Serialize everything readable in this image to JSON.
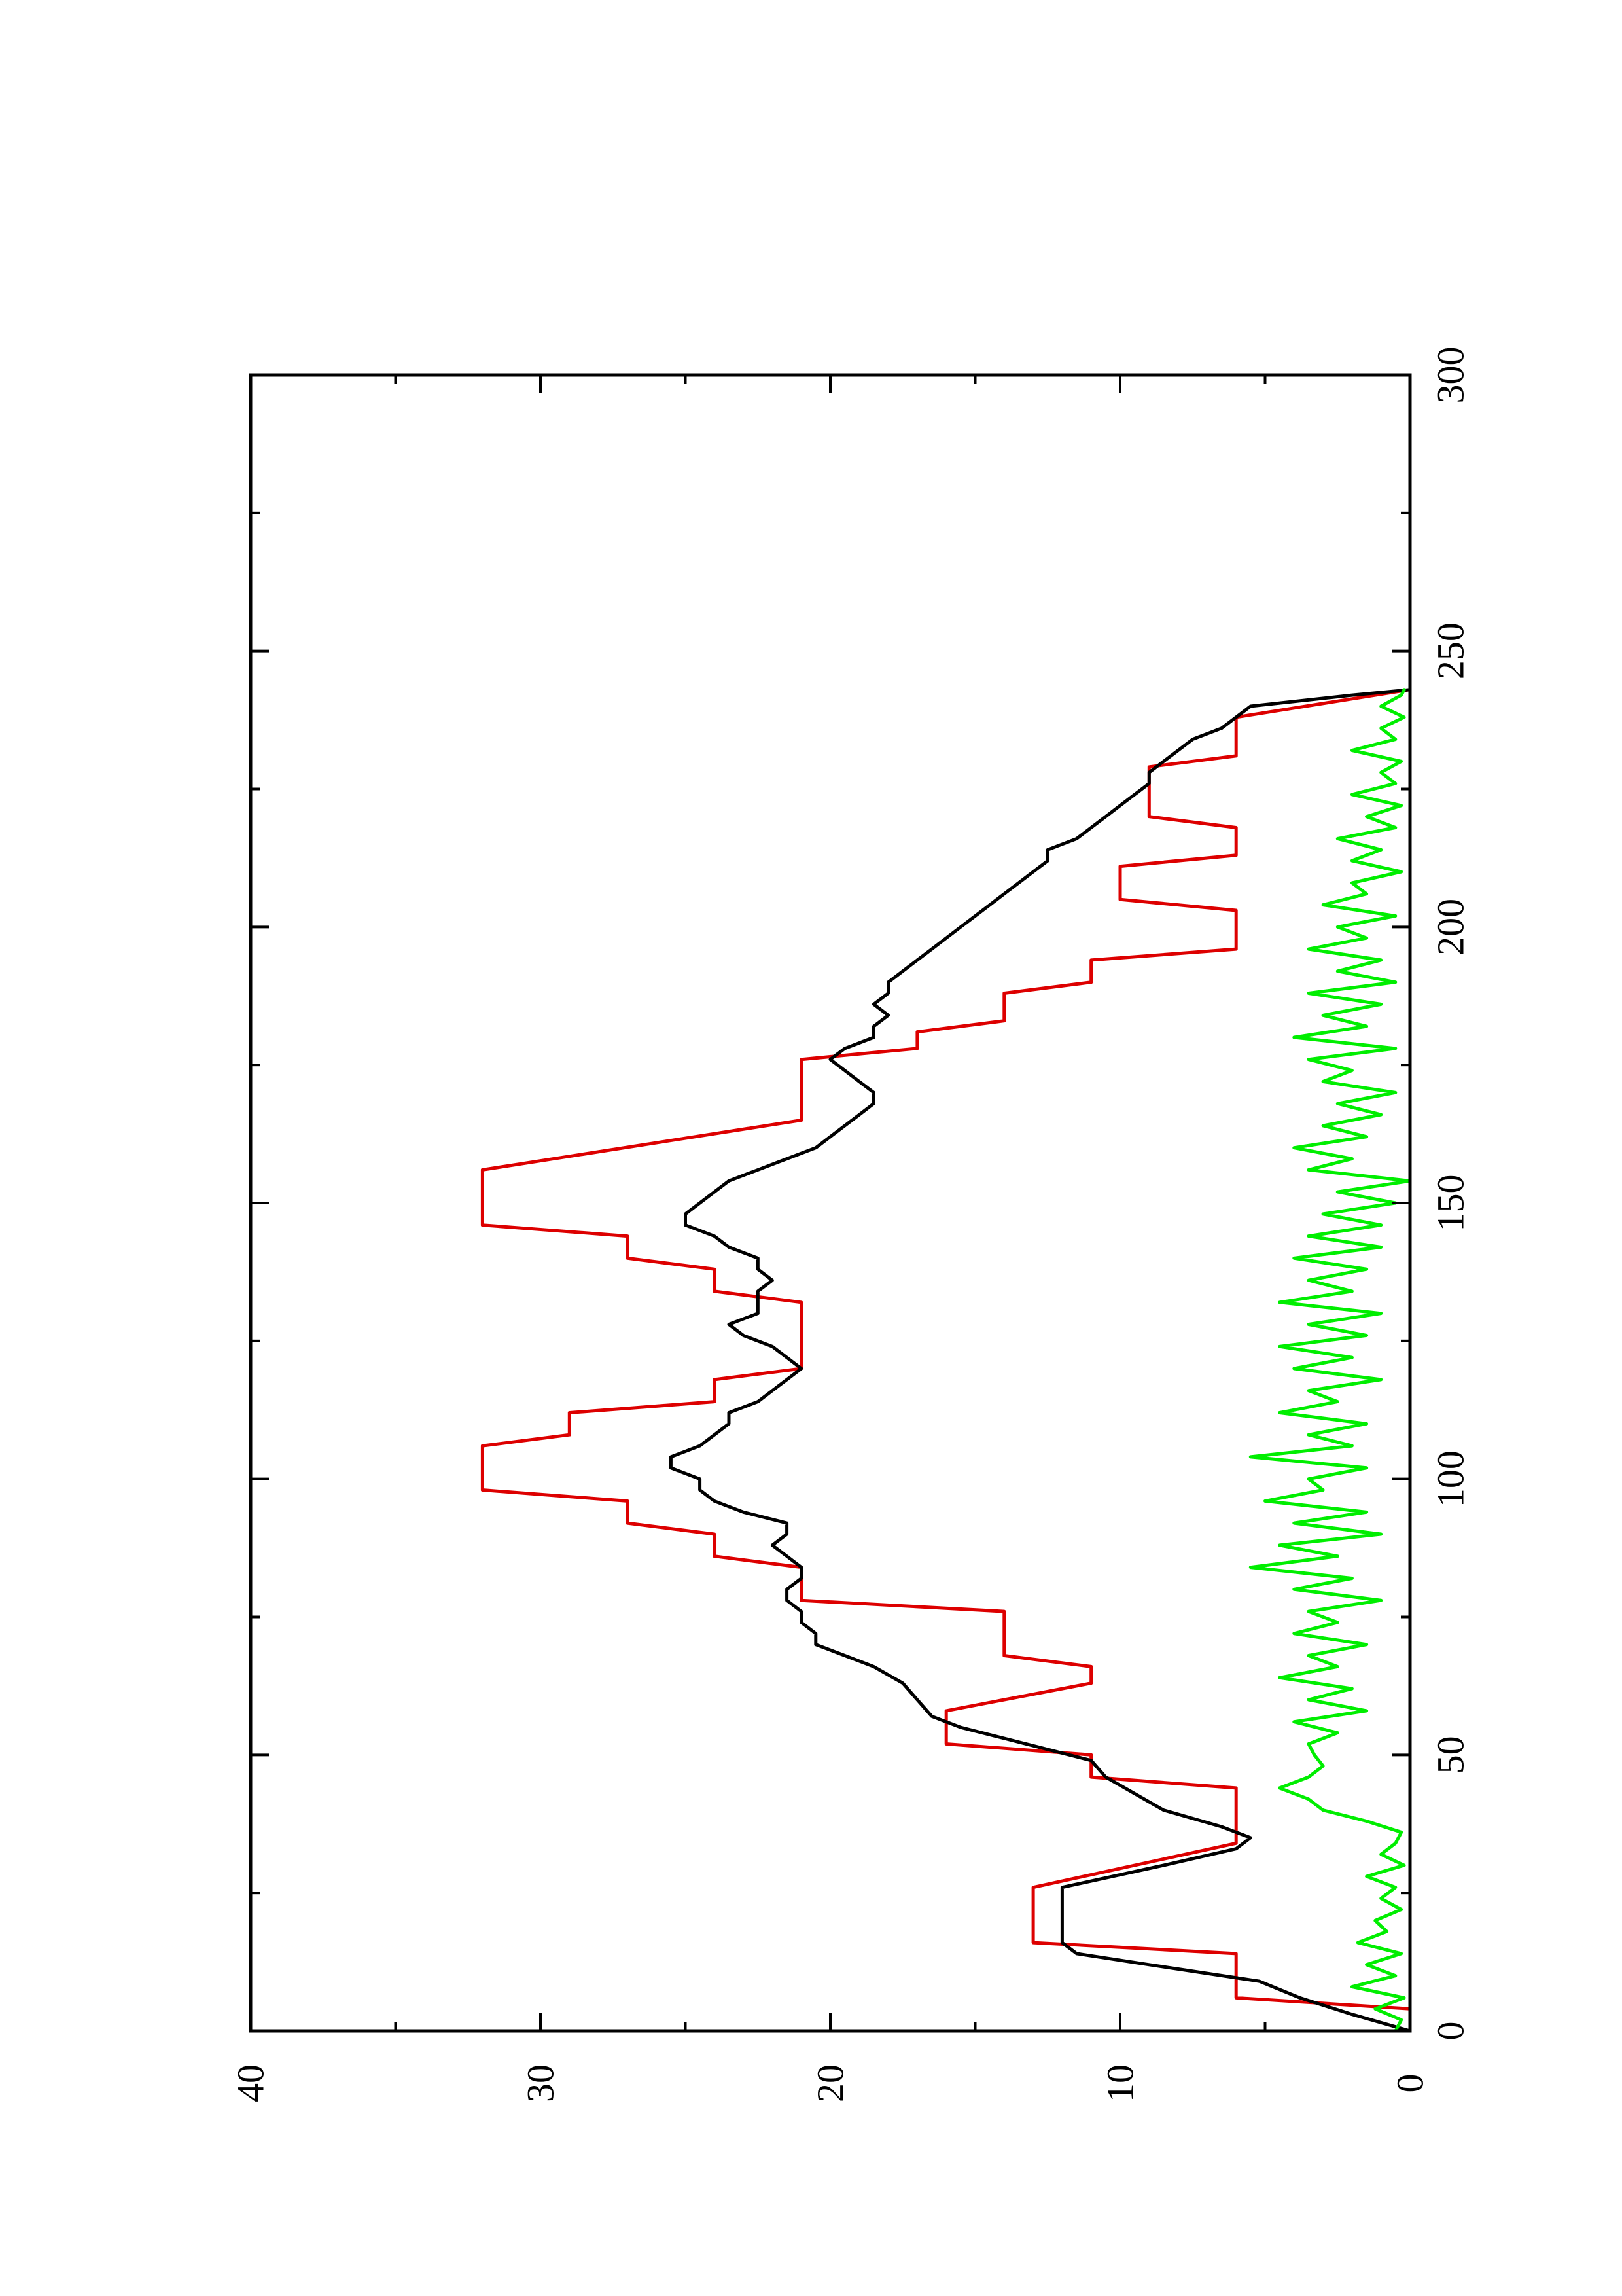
{
  "chart_data": {
    "type": "line",
    "orientation": "rotated 90 degrees counter-clockwise (x axis runs bottom-to-top along the right side, y axis runs right-to-left along the bottom)",
    "title": "",
    "xlabel": "",
    "ylabel": "",
    "xlim": [
      0,
      300
    ],
    "ylim": [
      0,
      40
    ],
    "x_ticks": [
      0,
      50,
      100,
      150,
      200,
      250,
      300
    ],
    "x_minor_ticks": [
      25,
      75,
      125,
      175,
      225,
      275
    ],
    "y_ticks": [
      0,
      10,
      20,
      30,
      40
    ],
    "y_minor_ticks": [
      5,
      15,
      25,
      35
    ],
    "x_tick_labels": [
      "0",
      "50",
      "100",
      "150",
      "200",
      "250",
      "300"
    ],
    "y_tick_labels": [
      "0",
      "10",
      "20",
      "30",
      "40"
    ],
    "grid": false,
    "legend": "none",
    "series": [
      {
        "color": "#dd0000",
        "x": [
          0,
          4,
          6,
          14,
          16,
          24,
          26,
          34,
          36,
          44,
          46,
          50,
          52,
          56,
          58,
          63,
          65,
          66,
          68,
          76,
          78,
          84,
          86,
          90,
          92,
          96,
          98,
          106,
          108,
          112,
          114,
          118,
          120,
          132,
          134,
          138,
          140,
          144,
          146,
          154,
          156,
          165,
          167,
          176,
          178,
          181,
          183,
          188,
          190,
          194,
          196,
          203,
          205,
          211,
          213,
          218,
          220,
          224,
          226,
          229,
          231,
          236,
          238,
          243
        ],
        "y": [
          0,
          0,
          6,
          6,
          13,
          13,
          13,
          6,
          6,
          6,
          11,
          11,
          16,
          16,
          16,
          11,
          11,
          11,
          14,
          14,
          21,
          21,
          24,
          24,
          27,
          27,
          32,
          32,
          29,
          29,
          24,
          24,
          21,
          21,
          24,
          24,
          27,
          27,
          32,
          32,
          32,
          21,
          21,
          21,
          17,
          17,
          14,
          14,
          11,
          11,
          6,
          6,
          10,
          10,
          6,
          6,
          9,
          9,
          9,
          9,
          6,
          6,
          6,
          0
        ]
      },
      {
        "color": "#000000",
        "x": [
          0,
          3,
          6,
          9,
          12,
          14,
          16,
          18,
          22,
          26,
          30,
          33,
          35,
          37,
          40,
          43,
          46,
          49,
          51,
          53,
          55,
          57,
          60,
          63,
          66,
          68,
          70,
          72,
          74,
          76,
          78,
          80,
          82,
          84,
          86,
          88,
          90,
          92,
          94,
          96,
          98,
          100,
          102,
          104,
          106,
          108,
          110,
          112,
          114,
          116,
          118,
          120,
          122,
          124,
          126,
          128,
          130,
          132,
          134,
          136,
          138,
          140,
          142,
          144,
          146,
          148,
          150,
          152,
          154,
          156,
          158,
          160,
          162,
          164,
          166,
          168,
          170,
          172,
          174,
          176,
          178,
          180,
          182,
          184,
          186,
          188,
          190,
          192,
          194,
          196,
          198,
          200,
          202,
          204,
          206,
          208,
          210,
          212,
          214,
          216,
          218,
          220,
          222,
          224,
          226,
          228,
          230,
          232,
          234,
          236,
          238,
          240,
          242,
          243
        ],
        "y": [
          0,
          2,
          3.8,
          5.2,
          9,
          11.5,
          12,
          12,
          12,
          12,
          8.5,
          6,
          5.5,
          6.5,
          8.5,
          9.5,
          10.5,
          11,
          12.5,
          14,
          15.5,
          16.5,
          17,
          17.5,
          18.5,
          19.5,
          20.5,
          20.5,
          21,
          21,
          21.5,
          21.5,
          21,
          21,
          21.5,
          22,
          21.5,
          21.5,
          23,
          24,
          24.5,
          24.5,
          25.5,
          25.5,
          24.5,
          24,
          23.5,
          23.5,
          22.5,
          22,
          21.5,
          21,
          21.5,
          22,
          23,
          23.5,
          22.5,
          22.5,
          22.5,
          22,
          22.5,
          22.5,
          23.5,
          24,
          25,
          25,
          24.5,
          24,
          23.5,
          22.5,
          21.5,
          20.5,
          20,
          19.5,
          19,
          18.5,
          18.5,
          19,
          19.5,
          20,
          19.5,
          18.5,
          18.5,
          18,
          18.5,
          18,
          18,
          17.5,
          17,
          16.5,
          16,
          15.5,
          15,
          14.5,
          14,
          13.5,
          13,
          12.5,
          12.5,
          11.5,
          11,
          10.5,
          10,
          9.5,
          9,
          9,
          8.5,
          8,
          7.5,
          6.5,
          6,
          5.5,
          2,
          0
        ]
      },
      {
        "color": "#00ee00",
        "x": [
          0,
          2,
          4,
          6,
          8,
          10,
          12,
          14,
          16,
          18,
          20,
          22,
          24,
          26,
          28,
          30,
          32,
          34,
          36,
          38,
          40,
          42,
          44,
          46,
          48,
          50,
          52,
          54,
          56,
          58,
          60,
          62,
          64,
          66,
          68,
          70,
          72,
          74,
          76,
          78,
          80,
          82,
          84,
          86,
          88,
          90,
          92,
          94,
          96,
          98,
          100,
          102,
          104,
          106,
          108,
          110,
          112,
          114,
          116,
          118,
          120,
          122,
          124,
          126,
          128,
          130,
          132,
          134,
          136,
          138,
          140,
          142,
          144,
          146,
          148,
          150,
          152,
          154,
          156,
          158,
          160,
          162,
          164,
          166,
          168,
          170,
          172,
          174,
          176,
          178,
          180,
          182,
          184,
          186,
          188,
          190,
          192,
          194,
          196,
          198,
          200,
          202,
          204,
          206,
          208,
          210,
          212,
          214,
          216,
          218,
          220,
          222,
          224,
          226,
          228,
          230,
          232,
          234,
          236,
          238,
          240,
          242,
          243
        ],
        "y": [
          0.5,
          0.3,
          1.2,
          0.2,
          2,
          0.5,
          1.5,
          0.3,
          1.8,
          0.8,
          1.2,
          0.3,
          1,
          0.5,
          1.5,
          0.2,
          1,
          0.5,
          0.3,
          1.5,
          3,
          3.5,
          4.5,
          3.5,
          3,
          3.3,
          3.5,
          2.5,
          4,
          1.5,
          3.5,
          2,
          4.5,
          2.5,
          3.5,
          1.5,
          4,
          2.5,
          3.5,
          1,
          4,
          2,
          5.5,
          2.5,
          4.5,
          1,
          4,
          1.5,
          5,
          3,
          3.5,
          1.5,
          5.5,
          2,
          3.5,
          1.5,
          4.5,
          2.5,
          3.5,
          1,
          4,
          2,
          4.5,
          1.5,
          3.5,
          1,
          4.5,
          2,
          3.5,
          1.5,
          4,
          1,
          3.5,
          1,
          3,
          0.5,
          2.5,
          0,
          3.5,
          2,
          4,
          1.5,
          3,
          1,
          2.5,
          0.5,
          3,
          2,
          3.5,
          0.5,
          4,
          1.5,
          3,
          1,
          3.5,
          0.5,
          2.5,
          1,
          3.5,
          1.5,
          2.5,
          0.5,
          3,
          1.5,
          2,
          0.3,
          2,
          1,
          2.5,
          0.5,
          1.5,
          0.3,
          2,
          0.5,
          1,
          0.3,
          2,
          0.5,
          1,
          0.2,
          1,
          0.3,
          0.2
        ]
      }
    ]
  }
}
